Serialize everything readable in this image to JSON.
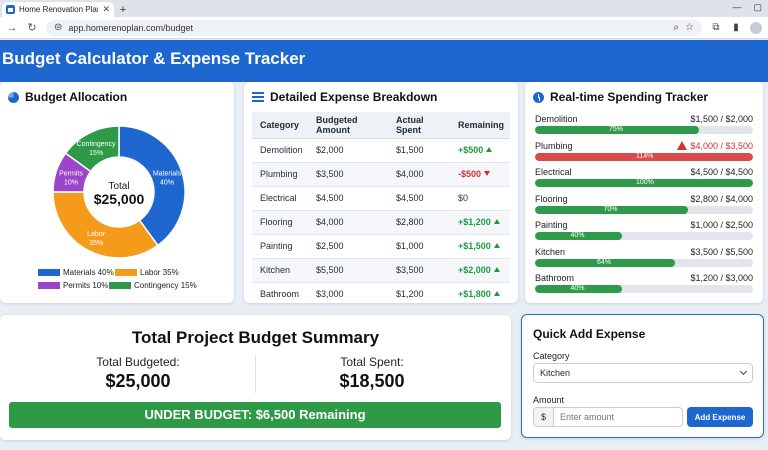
{
  "browser": {
    "tab_title": "Home Renovation Planner",
    "url": "app.homerenoplan.com/budget"
  },
  "app": {
    "title": "Budget Calculator & Expense Tracker"
  },
  "allocation": {
    "title": "Budget Allocation",
    "center_label": "Total",
    "center_value": "$25,000",
    "slices": [
      {
        "name": "Materials",
        "percent": 40,
        "label": "Materials",
        "pct_label": "40%",
        "color": "#1e66d0"
      },
      {
        "name": "Labor",
        "percent": 35,
        "label": "Labor",
        "pct_label": "35%",
        "color": "#f59a1b"
      },
      {
        "name": "Permits",
        "percent": 10,
        "label": "Permits",
        "pct_label": "10%",
        "color": "#9b45c7"
      },
      {
        "name": "Contingency",
        "percent": 15,
        "label": "Contingency",
        "pct_label": "15%",
        "color": "#2e9a48"
      }
    ],
    "legend": [
      "Materials 40%",
      "Labor 35%",
      "Permits 10%",
      "Contingency 15%"
    ]
  },
  "breakdown": {
    "title": "Detailed Expense Breakdown",
    "headers": [
      "Category",
      "Budgeted Amount",
      "Actual Spent",
      "Remaining"
    ],
    "rows": [
      {
        "category": "Demolition",
        "budget": "$2,000",
        "spent": "$1,500",
        "remaining": "+$500",
        "status": "pos"
      },
      {
        "category": "Plumbing",
        "budget": "$3,500",
        "spent": "$4,000",
        "remaining": "-$500",
        "status": "neg"
      },
      {
        "category": "Electrical",
        "budget": "$4,500",
        "spent": "$4,500",
        "remaining": "$0",
        "status": "zero"
      },
      {
        "category": "Flooring",
        "budget": "$4,000",
        "spent": "$2,800",
        "remaining": "+$1,200",
        "status": "pos"
      },
      {
        "category": "Painting",
        "budget": "$2,500",
        "spent": "$1,000",
        "remaining": "+$1,500",
        "status": "pos"
      },
      {
        "category": "Kitchen",
        "budget": "$5,500",
        "spent": "$3,500",
        "remaining": "+$2,000",
        "status": "pos"
      },
      {
        "category": "Bathroom",
        "budget": "$3,000",
        "spent": "$1,200",
        "remaining": "+$1,800",
        "status": "pos"
      }
    ]
  },
  "tracker": {
    "title": "Real-time Spending Tracker",
    "items": [
      {
        "name": "Demolition",
        "amount": "$1,500 / $2,000",
        "pct_label": "75%",
        "fraction": 0.75,
        "over": false
      },
      {
        "name": "Plumbing",
        "amount": "$4,000 / $3,500",
        "pct_label": "114%",
        "fraction": 1.0,
        "over": true
      },
      {
        "name": "Electrical",
        "amount": "$4,500 / $4,500",
        "pct_label": "100%",
        "fraction": 1.0,
        "over": false
      },
      {
        "name": "Flooring",
        "amount": "$2,800 / $4,000",
        "pct_label": "70%",
        "fraction": 0.7,
        "over": false
      },
      {
        "name": "Painting",
        "amount": "$1,000 / $2,500",
        "pct_label": "40%",
        "fraction": 0.4,
        "over": false
      },
      {
        "name": "Kitchen",
        "amount": "$3,500 / $5,500",
        "pct_label": "64%",
        "fraction": 0.64,
        "over": false
      },
      {
        "name": "Bathroom",
        "amount": "$1,200 / $3,000",
        "pct_label": "40%",
        "fraction": 0.4,
        "over": false
      }
    ]
  },
  "summary": {
    "title": "Total Project Budget Summary",
    "budgeted_label": "Total Budgeted:",
    "budgeted_value": "$25,000",
    "spent_label": "Total Spent:",
    "spent_value": "$18,500",
    "banner": "UNDER BUDGET: $6,500 Remaining"
  },
  "quick_add": {
    "title": "Quick Add Expense",
    "category_label": "Category",
    "category_value": "Kitchen",
    "amount_label": "Amount",
    "currency": "$",
    "amount_placeholder": "Enter amount",
    "button": "Add Expense"
  }
}
